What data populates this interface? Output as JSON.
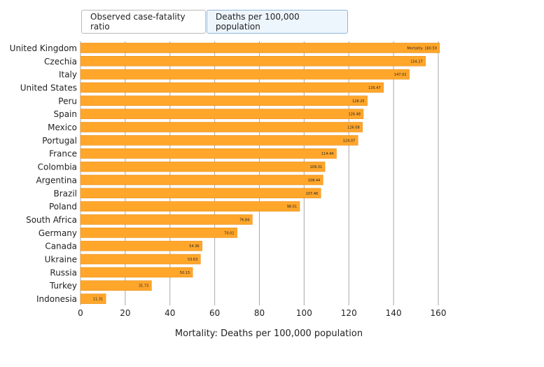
{
  "tabs": [
    {
      "label": "Observed case-fatality ratio"
    },
    {
      "label": "Deaths per 100,000 population"
    }
  ],
  "colors": {
    "bar": "#ffa62b",
    "bar_edge": "#e8901a",
    "grid": "#a8a8a8",
    "text": "#222222"
  },
  "chart_data": {
    "type": "bar",
    "orientation": "horizontal",
    "categories": [
      "United Kingdom",
      "Czechia",
      "Italy",
      "United States",
      "Peru",
      "Spain",
      "Mexico",
      "Portugal",
      "France",
      "Colombia",
      "Argentina",
      "Brazil",
      "Poland",
      "South Africa",
      "Germany",
      "Canada",
      "Ukraine",
      "Russia",
      "Turkey",
      "Indonesia"
    ],
    "values": [
      160.59,
      154.27,
      147.02,
      135.47,
      128.25,
      126.48,
      126.08,
      124.07,
      114.44,
      109.31,
      108.44,
      107.46,
      98.01,
      76.84,
      70.01,
      54.36,
      53.63,
      50.13,
      31.73,
      11.31
    ],
    "value_labels": [
      "160.59",
      "154.27",
      "147.02",
      "135.47",
      "128.25",
      "126.48",
      "126.08",
      "124.07",
      "114.44",
      "109.31",
      "108.44",
      "107.46",
      "98.01",
      "76.84",
      "70.01",
      "54.36",
      "53.63",
      "50.13",
      "31.73",
      "11.31"
    ],
    "first_label_prefix": "Mortality:",
    "xlabel": "Mortality: Deaths per 100,000 population",
    "xlim": [
      0,
      160
    ],
    "xticks": [
      "0",
      "20",
      "40",
      "60",
      "80",
      "100",
      "120",
      "140",
      "160"
    ],
    "grid": true
  }
}
